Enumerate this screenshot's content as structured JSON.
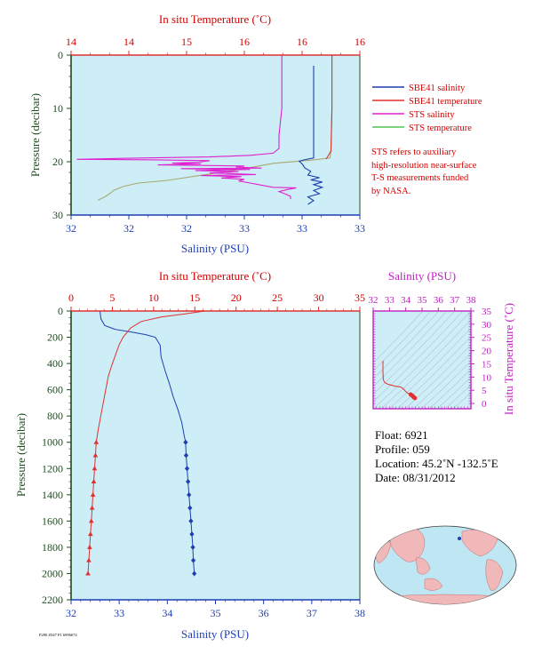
{
  "colors": {
    "plot_bg": "#cdeef7",
    "salinity": "#1d3fb0",
    "temperature": "#e03030",
    "sts_salinity": "#e020d0",
    "sts_temperature": "#a8a870",
    "sts_temperature_legend": "#52c452",
    "inset_axes": "#c020c0",
    "axis_green": "#1e4d1e",
    "map_land": "#f0b8b8",
    "map_ocean": "#bfe6f3"
  },
  "top_chart": {
    "top_axis_title": "In situ Temperature (˚C)",
    "top_ticks": [
      "14",
      "14",
      "15",
      "16",
      "16",
      "16"
    ],
    "bottom_axis_title": "Salinity (PSU)",
    "bottom_ticks": [
      "32",
      "32",
      "32",
      "33",
      "33",
      "33"
    ],
    "y_axis_title": "Pressure (decibar)",
    "y_ticks": [
      "0",
      "10",
      "20",
      "30"
    ],
    "legend": [
      "SBE41 salinity",
      "SBE41 temperature",
      "STS salinity",
      "STS temperature"
    ],
    "note_lines": [
      "STS refers to auxiliary",
      "high-resolution near-surface",
      "T-S measurements funded",
      "by NASA."
    ]
  },
  "bottom_chart": {
    "top_axis_title": "In situ Temperature (˚C)",
    "top_ticks": [
      "0",
      "5",
      "10",
      "15",
      "20",
      "25",
      "30",
      "35"
    ],
    "bottom_axis_title": "Salinity (PSU)",
    "bottom_ticks": [
      "32",
      "33",
      "34",
      "35",
      "36",
      "37",
      "38"
    ],
    "y_axis_title": "Pressure (decibar)",
    "y_ticks": [
      "0",
      "200",
      "400",
      "600",
      "800",
      "1000",
      "1200",
      "1400",
      "1600",
      "1800",
      "2000",
      "2200"
    ]
  },
  "inset": {
    "top_axis_title": "Salinity (PSU)",
    "top_ticks": [
      "32",
      "33",
      "34",
      "35",
      "36",
      "37",
      "38"
    ],
    "right_axis_title": "In situ Temperature (˚C)",
    "right_ticks": [
      "0",
      "5",
      "10",
      "15",
      "20",
      "25",
      "30",
      "35"
    ]
  },
  "float_info": {
    "float": "Float: 6921",
    "profile": "Profile: 059",
    "location": "Location: 45.2˚N -132.5˚E",
    "date": "Date: 08/31/2012"
  },
  "footer_code": "P280 Z047 P1 6996674",
  "chart_data": [
    {
      "type": "line",
      "title": "",
      "xlabel": "Salinity (PSU)",
      "x2label": "In situ Temperature (˚C)",
      "ylabel": "Pressure (decibar)",
      "xlim": [
        32.0,
        33.0
      ],
      "x2lim": [
        13.5,
        16.5
      ],
      "ylim": [
        30,
        0
      ],
      "series": [
        {
          "name": "SBE41 salinity",
          "axis": "salinity",
          "points": [
            [
              32.84,
              2
            ],
            [
              32.84,
              10
            ],
            [
              32.84,
              16
            ],
            [
              32.84,
              19.3
            ],
            [
              32.81,
              19.6
            ],
            [
              32.79,
              19.9
            ],
            [
              32.8,
              20.4
            ],
            [
              32.81,
              21.2
            ],
            [
              32.83,
              21.8
            ],
            [
              32.82,
              22.5
            ],
            [
              32.86,
              23.0
            ],
            [
              32.83,
              23.4
            ],
            [
              32.87,
              23.8
            ],
            [
              32.84,
              24.3
            ],
            [
              32.87,
              24.8
            ],
            [
              32.84,
              25.4
            ],
            [
              32.86,
              26.0
            ],
            [
              32.82,
              26.6
            ],
            [
              32.84,
              27.3
            ],
            [
              32.82,
              28.0
            ]
          ]
        },
        {
          "name": "SBE41 temperature",
          "axis": "temperature",
          "points": [
            [
              16.21,
              0
            ],
            [
              16.21,
              10
            ],
            [
              16.2,
              18
            ],
            [
              16.15,
              19.5
            ]
          ]
        },
        {
          "name": "STS salinity",
          "axis": "sts_salinity",
          "points": [
            [
              32.73,
              0
            ],
            [
              32.73,
              5
            ],
            [
              32.73,
              10
            ],
            [
              32.72,
              15
            ],
            [
              32.72,
              17.5
            ],
            [
              32.7,
              18.4
            ],
            [
              32.62,
              18.8
            ],
            [
              32.48,
              19.1
            ],
            [
              32.2,
              19.35
            ],
            [
              32.02,
              19.55
            ],
            [
              32.3,
              19.65
            ],
            [
              32.48,
              19.8
            ],
            [
              32.44,
              20.1
            ],
            [
              32.35,
              20.25
            ],
            [
              32.45,
              20.4
            ],
            [
              32.3,
              20.6
            ],
            [
              32.6,
              20.8
            ],
            [
              32.57,
              21.0
            ],
            [
              32.66,
              21.2
            ],
            [
              32.38,
              21.3
            ],
            [
              32.62,
              21.45
            ],
            [
              32.43,
              21.65
            ],
            [
              32.58,
              21.85
            ],
            [
              32.48,
              22.1
            ],
            [
              32.64,
              22.4
            ],
            [
              32.45,
              22.6
            ],
            [
              32.59,
              22.8
            ],
            [
              32.52,
              23.05
            ],
            [
              32.6,
              23.3
            ],
            [
              32.58,
              23.6
            ],
            [
              32.62,
              24.0
            ],
            [
              32.66,
              24.4
            ],
            [
              32.7,
              24.8
            ],
            [
              32.78,
              24.9
            ],
            [
              32.75,
              25.2
            ],
            [
              32.72,
              25.6
            ],
            [
              32.74,
              26.0
            ],
            [
              32.76,
              26.5
            ],
            [
              32.76,
              27.0
            ]
          ]
        },
        {
          "name": "STS temperature",
          "axis": "temperature",
          "points": [
            [
              16.21,
              0
            ],
            [
              16.21,
              10
            ],
            [
              16.2,
              18
            ],
            [
              16.19,
              19.3
            ],
            [
              16.0,
              19.7
            ],
            [
              15.6,
              20.3
            ],
            [
              15.3,
              21.3
            ],
            [
              14.9,
              22.4
            ],
            [
              14.5,
              23.5
            ],
            [
              14.2,
              24.0
            ],
            [
              14.05,
              24.6
            ],
            [
              13.95,
              25.3
            ],
            [
              13.9,
              26.0
            ],
            [
              13.85,
              26.6
            ],
            [
              13.78,
              27.2
            ]
          ]
        }
      ]
    },
    {
      "type": "line",
      "title": "",
      "xlabel": "Salinity (PSU)",
      "x2label": "In situ Temperature (˚C)",
      "ylabel": "Pressure (decibar)",
      "xlim": [
        32,
        38
      ],
      "x2lim": [
        0,
        35
      ],
      "ylim": [
        2200,
        0
      ],
      "series": [
        {
          "name": "salinity",
          "axis": "salinity",
          "points": [
            [
              32.6,
              0
            ],
            [
              32.62,
              60
            ],
            [
              32.7,
              110
            ],
            [
              32.92,
              140
            ],
            [
              33.25,
              160
            ],
            [
              33.55,
              180
            ],
            [
              33.75,
              200
            ],
            [
              33.85,
              260
            ],
            [
              33.87,
              350
            ],
            [
              33.95,
              450
            ],
            [
              34.04,
              550
            ],
            [
              34.12,
              650
            ],
            [
              34.22,
              750
            ],
            [
              34.3,
              850
            ],
            [
              34.35,
              950
            ],
            [
              34.38,
              1000
            ],
            [
              34.39,
              1100
            ],
            [
              34.41,
              1200
            ],
            [
              34.43,
              1300
            ],
            [
              34.45,
              1400
            ],
            [
              34.47,
              1500
            ],
            [
              34.49,
              1600
            ],
            [
              34.51,
              1700
            ],
            [
              34.53,
              1800
            ],
            [
              34.54,
              1900
            ],
            [
              34.56,
              2000
            ]
          ]
        },
        {
          "name": "temperature",
          "axis": "temperature",
          "points": [
            [
              16.2,
              0
            ],
            [
              14,
              20
            ],
            [
              11,
              45
            ],
            [
              8.5,
              80
            ],
            [
              7.2,
              130
            ],
            [
              6.3,
              200
            ],
            [
              5.8,
              260
            ],
            [
              5.3,
              350
            ],
            [
              4.9,
              420
            ],
            [
              4.5,
              500
            ],
            [
              4.2,
              600
            ],
            [
              3.9,
              700
            ],
            [
              3.6,
              800
            ],
            [
              3.3,
              900
            ],
            [
              3.05,
              1000
            ],
            [
              2.95,
              1100
            ],
            [
              2.85,
              1200
            ],
            [
              2.75,
              1300
            ],
            [
              2.65,
              1400
            ],
            [
              2.55,
              1500
            ],
            [
              2.45,
              1600
            ],
            [
              2.35,
              1700
            ],
            [
              2.25,
              1800
            ],
            [
              2.15,
              1900
            ],
            [
              2.05,
              2000
            ]
          ]
        }
      ],
      "markers_from_pressure": 1000
    },
    {
      "type": "scatter",
      "title": "",
      "xlabel": "Salinity (PSU)",
      "ylabel": "In situ Temperature (˚C)",
      "xlim": [
        32,
        38
      ],
      "ylim": [
        -2,
        35
      ],
      "series": [
        {
          "name": "T-S profile",
          "points": [
            [
              32.6,
              16.2
            ],
            [
              32.6,
              12
            ],
            [
              32.62,
              9
            ],
            [
              32.7,
              8
            ],
            [
              32.9,
              7.3
            ],
            [
              33.3,
              6.6
            ],
            [
              33.7,
              6.2
            ],
            [
              33.85,
              5.6
            ],
            [
              33.95,
              4.8
            ],
            [
              34.1,
              4.0
            ],
            [
              34.3,
              3.4
            ],
            [
              34.4,
              3.0
            ],
            [
              34.45,
              2.6
            ],
            [
              34.5,
              2.3
            ],
            [
              34.56,
              2.05
            ]
          ]
        }
      ]
    }
  ]
}
